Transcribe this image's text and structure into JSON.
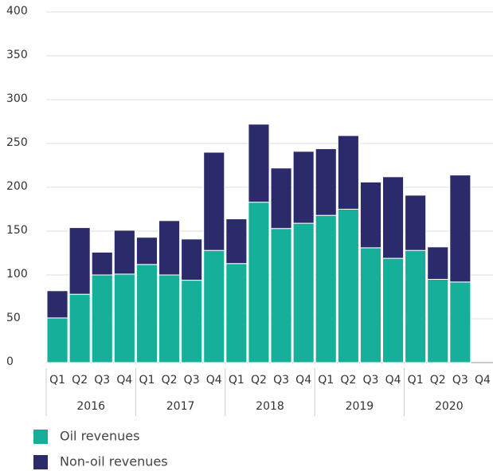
{
  "chart_data": {
    "type": "stacked_bar",
    "categories": [
      "Q1",
      "Q2",
      "Q3",
      "Q4",
      "Q1",
      "Q2",
      "Q3",
      "Q4",
      "Q1",
      "Q2",
      "Q3",
      "Q4",
      "Q1",
      "Q2",
      "Q3",
      "Q4",
      "Q1",
      "Q2",
      "Q3",
      "Q4"
    ],
    "years": [
      "2016",
      "2017",
      "2018",
      "2019",
      "2020"
    ],
    "series": [
      {
        "name": "Oil revenues",
        "color": "#16b09a",
        "values": [
          51,
          78,
          100,
          101,
          112,
          100,
          94,
          128,
          113,
          183,
          153,
          159,
          168,
          175,
          131,
          119,
          128,
          95,
          92,
          null
        ]
      },
      {
        "name": "Non-oil revenues",
        "color": "#2b2a6b",
        "values": [
          31,
          76,
          26,
          50,
          31,
          62,
          47,
          112,
          51,
          89,
          69,
          82,
          76,
          84,
          75,
          93,
          63,
          37,
          122,
          null
        ]
      }
    ],
    "ylim": [
      0,
      400
    ],
    "yticks": [
      0,
      50,
      100,
      150,
      200,
      250,
      300,
      350,
      400
    ],
    "grid": true
  }
}
